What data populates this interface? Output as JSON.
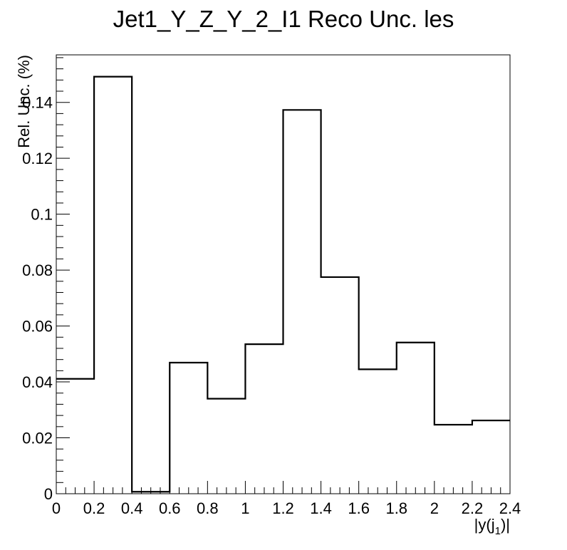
{
  "chart_data": {
    "type": "histogram",
    "title": "Jet1_Y_Z_Y_2_I1 Reco Unc. les",
    "xlabel": "|y(j",
    "xlabel_sub": "1",
    "xlabel_end": ")|",
    "ylabel": "Rel. Unc. (%)",
    "xlim": [
      0,
      2.4
    ],
    "ylim": [
      0,
      0.157
    ],
    "bin_edges": [
      0,
      0.2,
      0.4,
      0.6,
      0.8,
      1.0,
      1.2,
      1.4,
      1.6,
      1.8,
      2.0,
      2.2,
      2.4
    ],
    "values": [
      0.0411,
      0.1492,
      0.0007,
      0.0469,
      0.034,
      0.0535,
      0.1373,
      0.0775,
      0.0445,
      0.0541,
      0.0247,
      0.0262
    ],
    "xticks": [
      "0",
      "0.2",
      "0.4",
      "0.6",
      "0.8",
      "1",
      "1.2",
      "1.4",
      "1.6",
      "1.8",
      "2",
      "2.2",
      "2.4"
    ],
    "yticks": [
      "0",
      "0.02",
      "0.04",
      "0.06",
      "0.08",
      "0.1",
      "0.12",
      "0.14"
    ],
    "line_color": "#000000",
    "legend": "none",
    "grid": false
  }
}
